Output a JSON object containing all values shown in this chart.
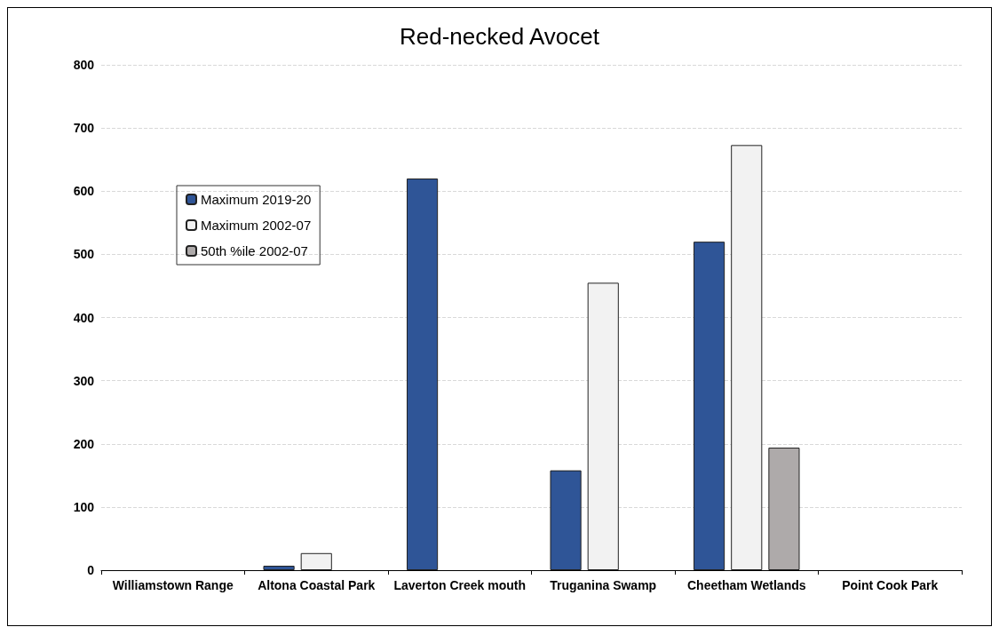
{
  "chart_data": {
    "type": "bar",
    "title": "Red-necked Avocet",
    "categories": [
      "Williamstown Range",
      "Altona Coastal Park",
      "Laverton Creek mouth",
      "Truganina Swamp",
      "Cheetham Wetlands",
      "Point Cook Park"
    ],
    "series": [
      {
        "name": "Maximum 2019-20",
        "color": "#2f5597",
        "values": [
          null,
          7,
          620,
          158,
          520,
          null
        ]
      },
      {
        "name": "Maximum 2002-07",
        "color": "#f2f2f2",
        "values": [
          null,
          27,
          null,
          455,
          673,
          null
        ]
      },
      {
        "name": "50th %ile 2002-07",
        "color": "#aeaaaa",
        "values": [
          null,
          null,
          null,
          null,
          194,
          null
        ]
      }
    ],
    "ylim": [
      0,
      800
    ],
    "yticks": [
      0,
      100,
      200,
      300,
      400,
      500,
      600,
      700,
      800
    ],
    "grid": "y",
    "legend": "top left"
  }
}
